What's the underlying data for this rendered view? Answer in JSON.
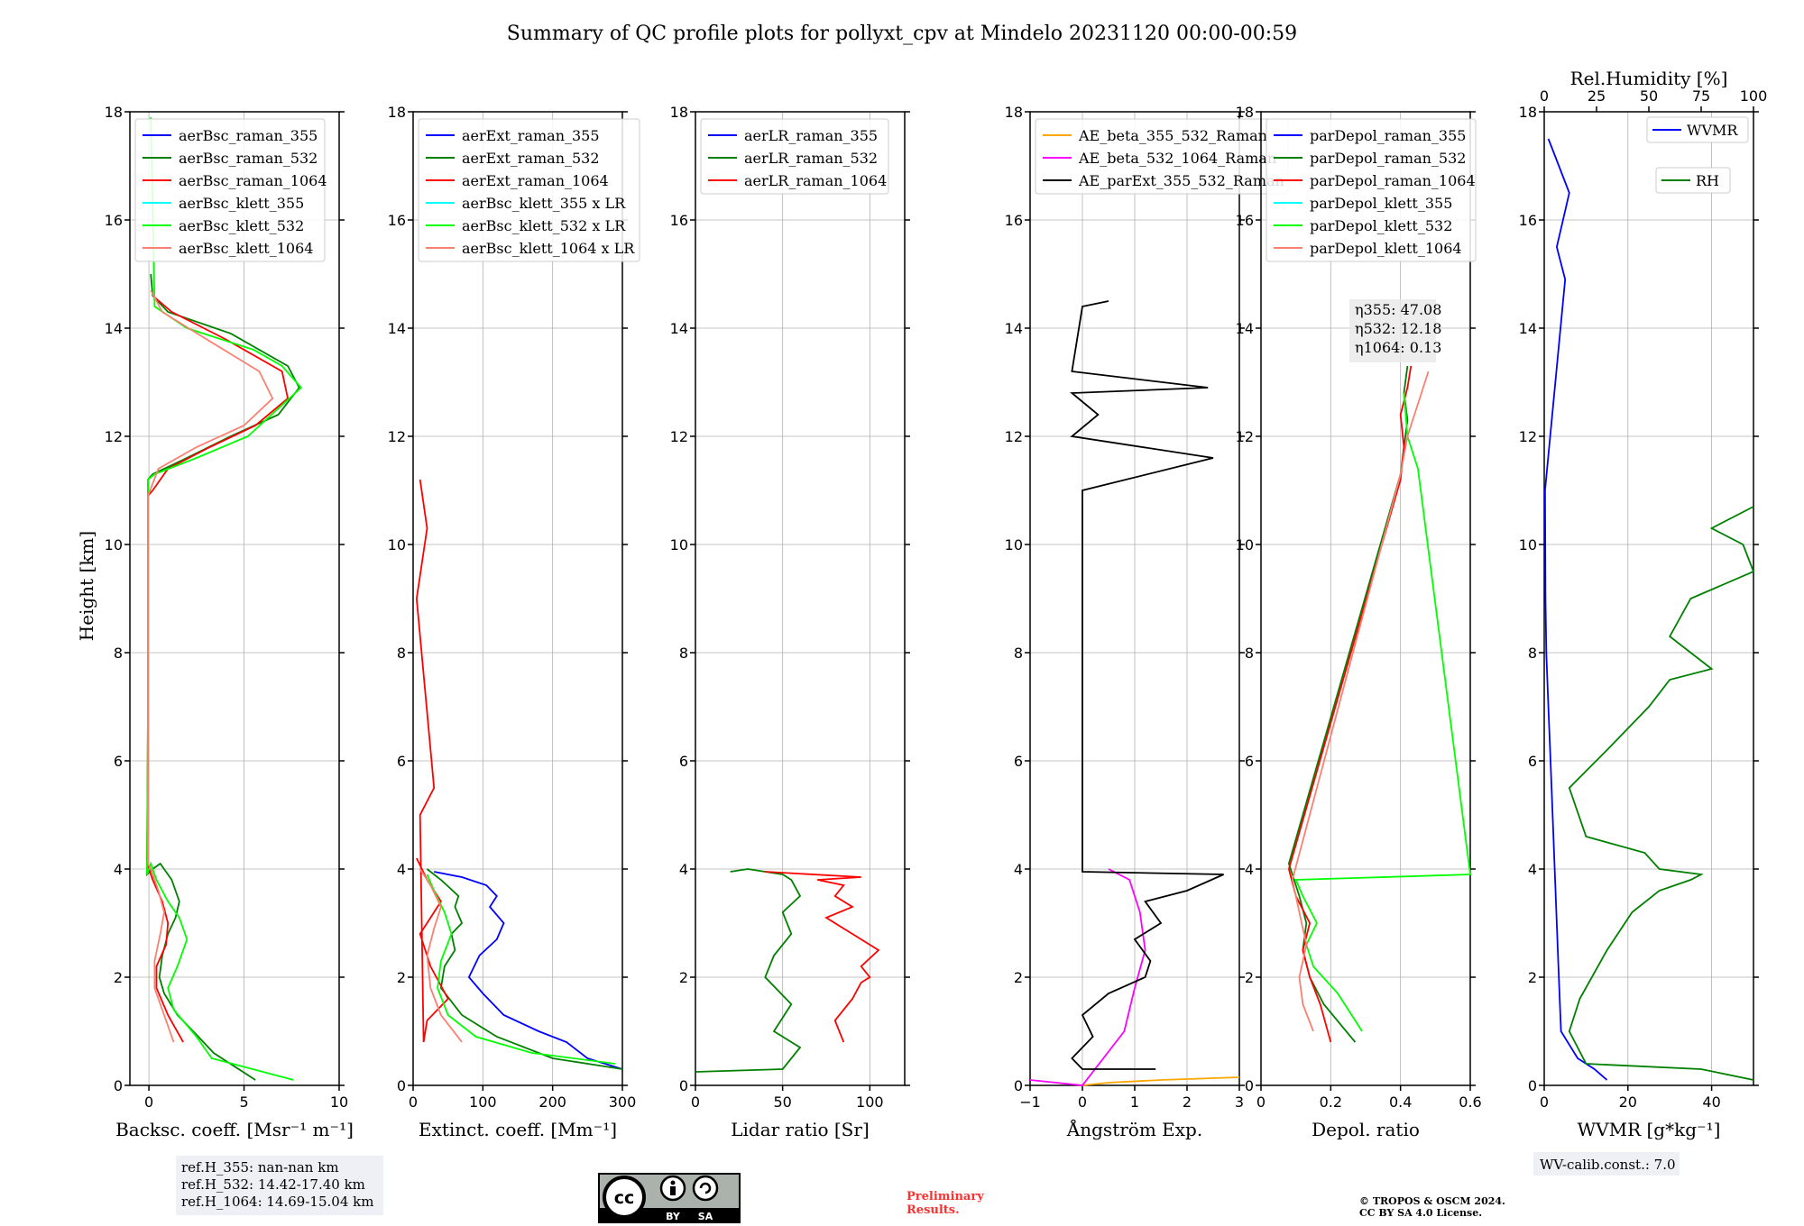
{
  "title": "Summary of QC profile plots for pollyxt_cpv at Mindelo 20231120 00:00-00:59",
  "ylabel": "Height [km]",
  "ref_notes": [
    "ref.H_355: nan-nan km",
    "ref.H_532: 14.42-17.40 km",
    "ref.H_1064: 14.69-15.04 km"
  ],
  "wv_calib": "WV-calib.const.: 7.0",
  "preliminary": [
    "Preliminary",
    "Results."
  ],
  "copyright": [
    "© TROPOS & OSCM 2024.",
    "CC BY SA 4.0 License."
  ],
  "license_badge": {
    "by": "BY",
    "sa": "SA"
  },
  "eta_labels": [
    "η355: 47.08",
    "η532: 12.18",
    "η1064: 0.13"
  ],
  "colors": {
    "blue": "#0000ff",
    "green": "#008000",
    "red": "#ff0000",
    "cyan": "#00ffff",
    "lime": "#00ff00",
    "salmon": "#fa8072",
    "orange": "#ffa500",
    "magenta": "#ff00ff",
    "black": "#000000"
  },
  "chart_data": [
    {
      "type": "line",
      "xlabel": "Backsc. coeff. [Msr⁻¹ m⁻¹]",
      "xlim": [
        -1,
        10
      ],
      "ylim": [
        0,
        18
      ],
      "xticks": [
        0,
        5,
        10
      ],
      "series": [
        {
          "name": "aerBsc_raman_355",
          "color": "blue",
          "x": [],
          "y": []
        },
        {
          "name": "aerBsc_raman_532",
          "color": "green",
          "x": [
            5.6,
            3.4,
            2.6,
            1.5,
            0.8,
            0.55,
            0.7,
            1.0,
            1.4,
            1.6,
            1.2,
            0.6,
            0.2,
            -0.1,
            -0.05,
            -0.05,
            -0.05,
            0.2,
            2.0,
            4.3,
            6.8,
            7.9,
            7.3,
            4.3,
            1.0,
            0.2,
            0.1
          ],
          "y": [
            0.1,
            0.6,
            0.9,
            1.3,
            1.7,
            2.0,
            2.4,
            2.8,
            3.1,
            3.4,
            3.8,
            4.1,
            4.0,
            3.9,
            6,
            9,
            11.2,
            11.3,
            11.6,
            12.0,
            12.4,
            12.9,
            13.3,
            13.9,
            14.3,
            14.6,
            15.0
          ]
        },
        {
          "name": "aerBsc_raman_1064",
          "color": "red",
          "x": [
            1.8,
            1.0,
            0.4,
            0.4,
            0.9,
            1.0,
            0.7,
            0.2,
            -0.1,
            -0.05,
            -0.05,
            0.2,
            1.0,
            3.2,
            5.6,
            7.3,
            7.0,
            4.0,
            1.2,
            0.2
          ],
          "y": [
            0.8,
            1.3,
            1.8,
            2.2,
            2.6,
            3.0,
            3.4,
            3.8,
            4.1,
            7,
            10.9,
            11.0,
            11.4,
            11.8,
            12.2,
            12.7,
            13.2,
            13.8,
            14.3,
            14.6
          ]
        },
        {
          "name": "aerBsc_klett_355",
          "color": "cyan",
          "x": [],
          "y": []
        },
        {
          "name": "aerBsc_klett_532",
          "color": "lime",
          "x": [
            7.6,
            3.3,
            2.5,
            1.3,
            1.0,
            1.5,
            2.0,
            1.6,
            1.0,
            0.4,
            0.1,
            -0.1,
            -0.05,
            -0.05,
            -0.05,
            0.3,
            2.5,
            5.2,
            8.0,
            7.0,
            5.5,
            2.0,
            0.3,
            0.1
          ],
          "y": [
            0.1,
            0.5,
            0.9,
            1.4,
            1.8,
            2.2,
            2.7,
            3.1,
            3.4,
            3.8,
            4.1,
            3.9,
            7,
            9,
            11.2,
            11.3,
            11.6,
            12.0,
            12.9,
            13.3,
            13.6,
            14.0,
            14.4,
            17.9
          ]
        },
        {
          "name": "aerBsc_klett_1064",
          "color": "salmon",
          "x": [
            1.3,
            0.8,
            0.3,
            0.3,
            0.6,
            0.8,
            0.5,
            0.1,
            -0.05,
            -0.05,
            0.5,
            2.5,
            5.0,
            6.5,
            5.8,
            3.0,
            0.7,
            0.1
          ],
          "y": [
            0.8,
            1.3,
            1.8,
            2.3,
            2.8,
            3.2,
            3.6,
            4.0,
            4.1,
            10.9,
            11.4,
            11.8,
            12.2,
            12.7,
            13.2,
            13.8,
            14.3,
            14.7
          ]
        }
      ]
    },
    {
      "type": "line",
      "xlabel": "Extinct. coeff. [Mm⁻¹]",
      "xlim": [
        0,
        300
      ],
      "ylim": [
        0,
        18
      ],
      "xticks": [
        0,
        100,
        200,
        300
      ],
      "series": [
        {
          "name": "aerExt_raman_355",
          "color": "blue",
          "x": [
            300,
            250,
            220,
            180,
            130,
            100,
            80,
            95,
            120,
            130,
            110,
            120,
            105,
            70,
            30
          ],
          "y": [
            0.3,
            0.5,
            0.8,
            1.0,
            1.3,
            1.7,
            2.0,
            2.4,
            2.7,
            3.0,
            3.3,
            3.5,
            3.7,
            3.85,
            3.95
          ]
        },
        {
          "name": "aerExt_raman_532",
          "color": "green",
          "x": [
            300,
            200,
            120,
            70,
            40,
            45,
            60,
            55,
            70,
            60,
            65,
            40,
            20
          ],
          "y": [
            0.3,
            0.5,
            0.9,
            1.3,
            1.8,
            2.2,
            2.5,
            2.8,
            3.0,
            3.3,
            3.5,
            3.8,
            4.0
          ]
        },
        {
          "name": "aerExt_raman_1064",
          "color": "red",
          "x": [
            5,
            20,
            40,
            10,
            25,
            50,
            20,
            15,
            10,
            30,
            5,
            20,
            10
          ],
          "y": [
            4.2,
            3.8,
            3.4,
            2.8,
            2.2,
            1.6,
            1.2,
            0.8,
            5,
            5.5,
            9,
            10.3,
            11.2
          ]
        },
        {
          "name": "aerBsc_klett_355 x LR",
          "color": "cyan",
          "x": [],
          "y": []
        },
        {
          "name": "aerBsc_klett_532 x LR",
          "color": "lime",
          "x": [
            290,
            170,
            90,
            50,
            35,
            40,
            55,
            45,
            30,
            20
          ],
          "y": [
            0.4,
            0.6,
            0.9,
            1.3,
            1.8,
            2.3,
            2.8,
            3.2,
            3.6,
            3.9
          ]
        },
        {
          "name": "aerBsc_klett_1064 x LR",
          "color": "salmon",
          "x": [
            70,
            40,
            25,
            20,
            30,
            40,
            25,
            15,
            10
          ],
          "y": [
            0.8,
            1.3,
            1.8,
            2.4,
            2.9,
            3.3,
            3.7,
            3.9,
            4.0
          ]
        }
      ]
    },
    {
      "type": "line",
      "xlabel": "Lidar ratio [Sr]",
      "xlim": [
        0,
        120
      ],
      "ylim": [
        0,
        18
      ],
      "xticks": [
        0,
        50,
        100
      ],
      "series": [
        {
          "name": "aerLR_raman_355",
          "color": "blue",
          "x": [],
          "y": []
        },
        {
          "name": "aerLR_raman_532",
          "color": "green",
          "x": [
            0,
            50,
            60,
            45,
            55,
            40,
            45,
            55,
            50,
            60,
            55,
            50,
            30,
            20
          ],
          "y": [
            0.25,
            0.3,
            0.7,
            1.0,
            1.5,
            2.0,
            2.4,
            2.8,
            3.2,
            3.5,
            3.8,
            3.9,
            4.0,
            3.95
          ]
        },
        {
          "name": "aerLR_raman_1064",
          "color": "red",
          "x": [
            85,
            80,
            90,
            95,
            100,
            95,
            105,
            90,
            75,
            90,
            80,
            85,
            70,
            95,
            40
          ],
          "y": [
            0.8,
            1.2,
            1.6,
            1.9,
            2.0,
            2.2,
            2.5,
            2.8,
            3.1,
            3.3,
            3.5,
            3.7,
            3.8,
            3.85,
            3.95
          ]
        }
      ]
    },
    {
      "type": "line",
      "xlabel": "Ångström Exp.",
      "xlim": [
        -1,
        3
      ],
      "ylim": [
        0,
        18
      ],
      "xticks": [
        -1,
        0,
        1,
        2,
        3
      ],
      "series": [
        {
          "name": "AE_beta_355_532_Raman",
          "color": "orange",
          "x": [
            0,
            0.5,
            1.5,
            3.0
          ],
          "y": [
            0,
            0.05,
            0.1,
            0.15
          ]
        },
        {
          "name": "AE_beta_532_1064_Raman",
          "color": "magenta",
          "x": [
            -1,
            -0.5,
            0,
            0.8,
            1.0,
            1.2,
            1.1,
            0.9,
            0.7,
            0.5
          ],
          "y": [
            0.1,
            0.05,
            0,
            1.0,
            1.8,
            2.5,
            3.2,
            3.8,
            3.9,
            4.0
          ]
        },
        {
          "name": "AE_parExt_355_532_Raman",
          "color": "black",
          "x": [
            1.4,
            0,
            -0.2,
            0.2,
            0,
            0.5,
            1.2,
            1.3,
            1.0,
            1.5,
            1.2,
            2.0,
            2.7,
            0,
            0,
            0,
            2.5,
            -0.2,
            0.3,
            -0.2,
            2.4,
            -0.2,
            0,
            0.5
          ],
          "y": [
            0.3,
            0.3,
            0.5,
            0.9,
            1.3,
            1.7,
            2.0,
            2.3,
            2.7,
            3.0,
            3.4,
            3.6,
            3.9,
            3.95,
            6,
            11,
            11.6,
            12.0,
            12.4,
            12.8,
            12.9,
            13.2,
            14.4,
            14.5
          ]
        }
      ]
    },
    {
      "type": "line",
      "xlabel": "Depol. ratio",
      "xlim": [
        0,
        0.6
      ],
      "ylim": [
        0,
        18
      ],
      "xticks": [
        0.0,
        0.2,
        0.4,
        0.6
      ],
      "series": [
        {
          "name": "parDepol_raman_355",
          "color": "blue",
          "x": [],
          "y": []
        },
        {
          "name": "parDepol_raman_532",
          "color": "green",
          "x": [
            0.27,
            0.18,
            0.14,
            0.12,
            0.13,
            0.11,
            0.09,
            0.08,
            0.4,
            0.41,
            0.42,
            0.41,
            0.42
          ],
          "y": [
            0.8,
            1.5,
            2.0,
            2.5,
            3.0,
            3.5,
            3.9,
            4.1,
            11.3,
            11.8,
            12.3,
            12.8,
            13.3
          ]
        },
        {
          "name": "parDepol_raman_1064",
          "color": "red",
          "x": [
            0.2,
            0.17,
            0.14,
            0.12,
            0.14,
            0.1,
            0.08,
            0.4,
            0.41,
            0.4,
            0.42,
            0.43
          ],
          "y": [
            0.8,
            1.5,
            2.0,
            2.5,
            3.0,
            3.5,
            4.0,
            11.2,
            11.8,
            12.4,
            12.9,
            13.3
          ]
        },
        {
          "name": "parDepol_klett_355",
          "color": "cyan",
          "x": [],
          "y": []
        },
        {
          "name": "parDepol_klett_532",
          "color": "lime",
          "x": [
            0.29,
            0.22,
            0.15,
            0.13,
            0.16,
            0.12,
            0.1,
            0.6,
            0.45,
            0.42,
            0.41
          ],
          "y": [
            1.0,
            1.7,
            2.2,
            2.6,
            3.0,
            3.5,
            3.8,
            3.9,
            11.4,
            12.0,
            12.8
          ]
        },
        {
          "name": "parDepol_klett_1064",
          "color": "salmon",
          "x": [
            0.15,
            0.12,
            0.11,
            0.13,
            0.11,
            0.09,
            0.4,
            0.42,
            0.45,
            0.48
          ],
          "y": [
            1.0,
            1.5,
            2.0,
            2.6,
            3.2,
            3.8,
            11.3,
            12.0,
            12.6,
            13.2
          ]
        }
      ],
      "annotations": [
        "η355: 47.08",
        "η532: 12.18",
        "η1064: 0.13"
      ]
    },
    {
      "type": "line",
      "xlabel": "WVMR [g*kg⁻¹]",
      "x2label": "Rel.Humidity [%]",
      "xlim": [
        0,
        50
      ],
      "x2lim": [
        0,
        100
      ],
      "ylim": [
        0,
        18
      ],
      "xticks": [
        0,
        20,
        40
      ],
      "x2ticks": [
        0,
        25,
        50,
        75,
        100
      ],
      "series": [
        {
          "name": "WVMR",
          "color": "blue",
          "axis": "x",
          "x": [
            15,
            12,
            8,
            4,
            3.5,
            3.0,
            2.5,
            2.0,
            1.5,
            1.0,
            0.5,
            0.3,
            0.2,
            5,
            3,
            6,
            2,
            1
          ],
          "y": [
            0.1,
            0.3,
            0.5,
            1.0,
            2.0,
            3.0,
            4.0,
            5.0,
            6.0,
            7.0,
            8.0,
            9.0,
            11.0,
            14.9,
            15.5,
            16.5,
            17.3,
            17.5
          ]
        },
        {
          "name": "RH",
          "color": "green",
          "axis": "x2",
          "x": [
            100,
            75,
            20,
            12,
            17,
            30,
            42,
            55,
            70,
            75,
            55,
            48,
            20,
            12,
            30,
            45,
            50,
            60,
            80,
            60,
            70,
            100,
            95,
            80,
            100
          ],
          "y": [
            0.1,
            0.3,
            0.4,
            1.0,
            1.6,
            2.5,
            3.2,
            3.6,
            3.8,
            3.9,
            4.0,
            4.3,
            4.6,
            5.5,
            6.2,
            6.8,
            7.0,
            7.5,
            7.7,
            8.3,
            9.0,
            9.5,
            10.0,
            10.3,
            10.7
          ]
        }
      ]
    }
  ]
}
